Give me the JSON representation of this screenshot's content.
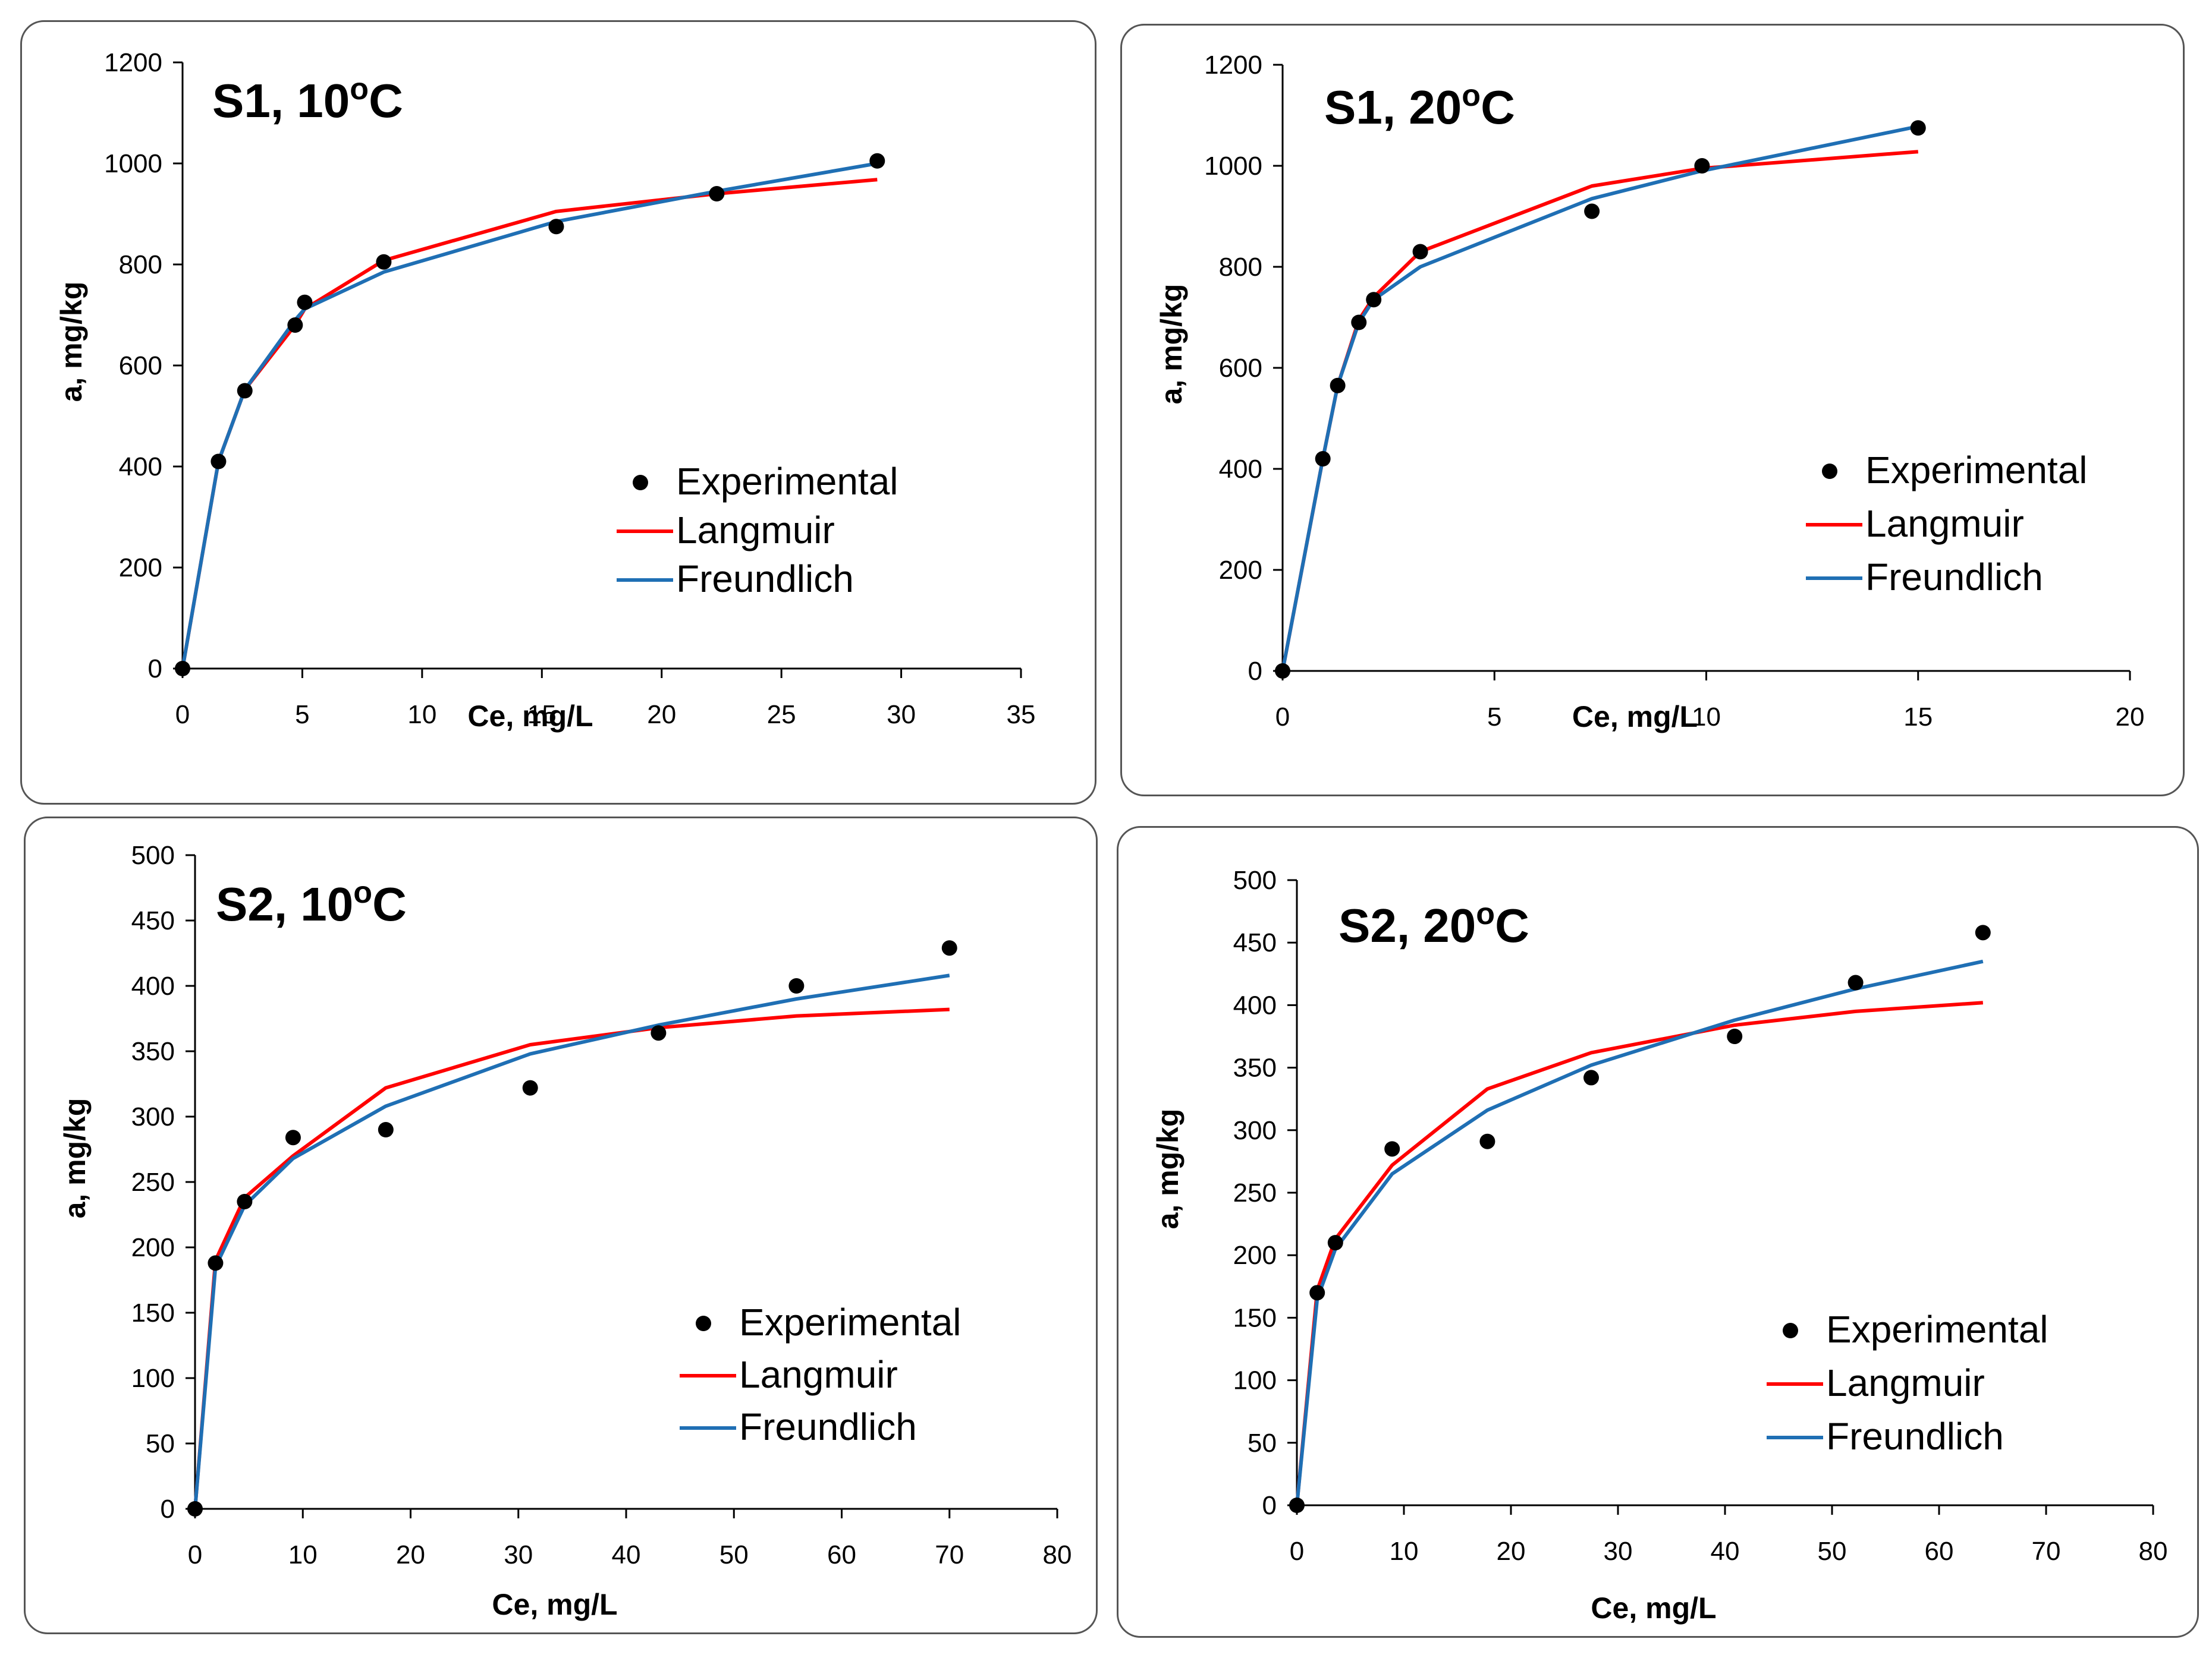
{
  "colors": {
    "experimental": "#000000",
    "langmuir": "#ff0000",
    "freundlich": "#1f6fb4",
    "axis": "#000000"
  },
  "chart_data": [
    {
      "type": "line",
      "title": "S1, 10°C",
      "title_main": "S1, 10",
      "title_sup": "o",
      "title_unit": "C",
      "xlabel": "Ce, mg/L",
      "ylabel": "a, mg/kg",
      "xlim": [
        0,
        35
      ],
      "ylim": [
        0,
        1200
      ],
      "xticks": [
        0,
        5,
        10,
        15,
        20,
        25,
        30,
        35
      ],
      "yticks": [
        0,
        200,
        400,
        600,
        800,
        1000,
        1200
      ],
      "legend": {
        "experimental": "Experimental",
        "langmuir": "Langmuir",
        "freundlich": "Freundlich"
      },
      "series": [
        {
          "name": "Experimental",
          "kind": "scatter",
          "x": [
            0,
            1.5,
            2.6,
            4.7,
            5.1,
            8.4,
            15.6,
            22.3,
            29.0
          ],
          "y": [
            0,
            410,
            550,
            680,
            725,
            805,
            875,
            940,
            1005
          ]
        },
        {
          "name": "Langmuir",
          "kind": "line",
          "x": [
            0,
            1.5,
            2.6,
            4.7,
            5.1,
            8.4,
            15.6,
            22.3,
            29.0
          ],
          "y": [
            0,
            410,
            552,
            680,
            712,
            808,
            905,
            940,
            968
          ]
        },
        {
          "name": "Freundlich",
          "kind": "line",
          "x": [
            0,
            1.5,
            2.6,
            4.7,
            5.1,
            8.4,
            15.6,
            22.3,
            29.0
          ],
          "y": [
            0,
            410,
            552,
            690,
            712,
            785,
            885,
            945,
            1000
          ]
        }
      ]
    },
    {
      "type": "line",
      "title": "S1, 20°C",
      "title_main": "S1, 20",
      "title_sup": "o",
      "title_unit": "C",
      "xlabel": "Ce, mg/L",
      "ylabel": "a, mg/kg",
      "xlim": [
        0,
        20
      ],
      "ylim": [
        0,
        1200
      ],
      "xticks": [
        0,
        5,
        10,
        15,
        20
      ],
      "yticks": [
        0,
        200,
        400,
        600,
        800,
        1000,
        1200
      ],
      "legend": {
        "experimental": "Experimental",
        "langmuir": "Langmuir",
        "freundlich": "Freundlich"
      },
      "series": [
        {
          "name": "Experimental",
          "kind": "scatter",
          "x": [
            0,
            0.95,
            1.3,
            1.8,
            2.15,
            3.25,
            7.3,
            9.9,
            15.0
          ],
          "y": [
            0,
            420,
            565,
            690,
            735,
            830,
            910,
            1000,
            1075
          ]
        },
        {
          "name": "Langmuir",
          "kind": "line",
          "x": [
            0,
            0.95,
            1.3,
            1.8,
            2.15,
            3.25,
            7.3,
            9.9,
            15.0
          ],
          "y": [
            0,
            420,
            565,
            695,
            740,
            830,
            960,
            995,
            1028
          ]
        },
        {
          "name": "Freundlich",
          "kind": "line",
          "x": [
            0,
            0.95,
            1.3,
            1.8,
            2.15,
            3.25,
            7.3,
            9.9,
            15.0
          ],
          "y": [
            0,
            420,
            565,
            690,
            735,
            800,
            935,
            990,
            1078
          ]
        }
      ]
    },
    {
      "type": "line",
      "title": "S2, 10°C",
      "title_main": "S2, 10",
      "title_sup": "o",
      "title_unit": "C",
      "xlabel": "Ce, mg/L",
      "ylabel": "a, mg/kg",
      "xlim": [
        0,
        80
      ],
      "ylim": [
        0,
        500
      ],
      "xticks": [
        0,
        10,
        20,
        30,
        40,
        50,
        60,
        70,
        80
      ],
      "yticks": [
        0,
        50,
        100,
        150,
        200,
        250,
        300,
        350,
        400,
        450,
        500
      ],
      "legend": {
        "experimental": "Experimental",
        "langmuir": "Langmuir",
        "freundlich": "Freundlich"
      },
      "series": [
        {
          "name": "Experimental",
          "kind": "scatter",
          "x": [
            0,
            1.9,
            4.6,
            9.1,
            17.7,
            31.1,
            43.0,
            55.8,
            70.0
          ],
          "y": [
            0,
            188,
            235,
            284,
            290,
            322,
            364,
            400,
            429
          ]
        },
        {
          "name": "Langmuir",
          "kind": "line",
          "x": [
            0,
            1.9,
            4.6,
            9.1,
            17.7,
            31.1,
            43.0,
            55.8,
            70.0
          ],
          "y": [
            0,
            190,
            238,
            270,
            322,
            355,
            368,
            377,
            382
          ]
        },
        {
          "name": "Freundlich",
          "kind": "line",
          "x": [
            0,
            1.9,
            4.6,
            9.1,
            17.7,
            31.1,
            43.0,
            55.8,
            70.0
          ],
          "y": [
            0,
            185,
            232,
            268,
            308,
            348,
            370,
            390,
            408
          ]
        }
      ]
    },
    {
      "type": "line",
      "title": "S2, 20°C",
      "title_main": "S2, 20",
      "title_sup": "o",
      "title_unit": "C",
      "xlabel": "Ce, mg/L",
      "ylabel": "a, mg/kg",
      "xlim": [
        0,
        80
      ],
      "ylim": [
        0,
        500
      ],
      "xticks": [
        0,
        10,
        20,
        30,
        40,
        50,
        60,
        70,
        80
      ],
      "yticks": [
        0,
        50,
        100,
        150,
        200,
        250,
        300,
        350,
        400,
        450,
        500
      ],
      "legend": {
        "experimental": "Experimental",
        "langmuir": "Langmuir",
        "freundlich": "Freundlich"
      },
      "series": [
        {
          "name": "Experimental",
          "kind": "scatter",
          "x": [
            0,
            1.9,
            3.6,
            8.9,
            17.8,
            27.5,
            40.9,
            52.2,
            64.1
          ],
          "y": [
            0,
            170,
            210,
            285,
            291,
            342,
            375,
            418,
            458
          ]
        },
        {
          "name": "Langmuir",
          "kind": "line",
          "x": [
            0,
            1.9,
            3.6,
            8.9,
            17.8,
            27.5,
            40.9,
            52.2,
            64.1
          ],
          "y": [
            0,
            172,
            213,
            272,
            333,
            362,
            384,
            395,
            402
          ]
        },
        {
          "name": "Freundlich",
          "kind": "line",
          "x": [
            0,
            1.9,
            3.6,
            8.9,
            17.8,
            27.5,
            40.9,
            52.2,
            64.1
          ],
          "y": [
            0,
            165,
            205,
            265,
            316,
            352,
            388,
            413,
            435
          ]
        }
      ]
    }
  ]
}
